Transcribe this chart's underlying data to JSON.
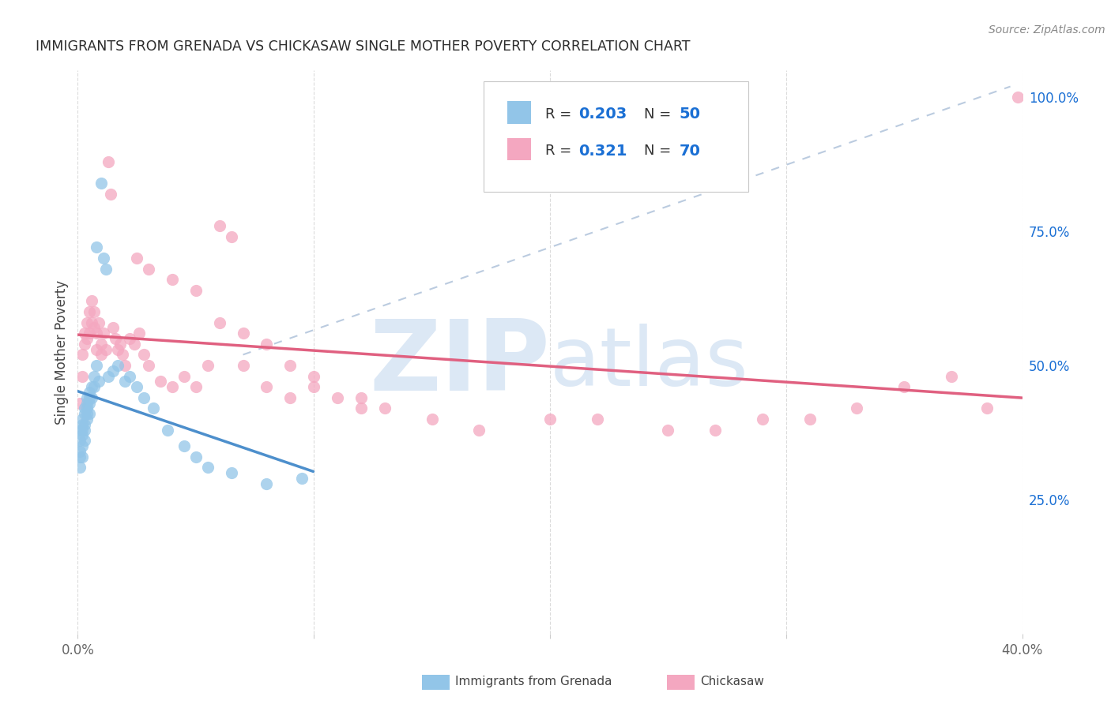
{
  "title": "IMMIGRANTS FROM GRENADA VS CHICKASAW SINGLE MOTHER POVERTY CORRELATION CHART",
  "source": "Source: ZipAtlas.com",
  "ylabel": "Single Mother Poverty",
  "xlim": [
    0.0,
    0.4
  ],
  "ylim": [
    0.0,
    1.05
  ],
  "blue_color": "#92c5e8",
  "pink_color": "#f4a7c0",
  "title_color": "#2d2d2d",
  "r_val_color": "#1a6fd4",
  "watermark_color": "#dce8f5",
  "trendline_blue_color": "#4d8fcc",
  "trendline_pink_color": "#e06080",
  "dashed_line_color": "#aabfd8",
  "background_color": "#ffffff",
  "grid_color": "#d8d8d8",
  "blue_x": [
    0.001,
    0.001,
    0.001,
    0.001,
    0.001,
    0.002,
    0.002,
    0.002,
    0.002,
    0.002,
    0.002,
    0.003,
    0.003,
    0.003,
    0.003,
    0.003,
    0.004,
    0.004,
    0.004,
    0.004,
    0.004,
    0.005,
    0.005,
    0.005,
    0.005,
    0.006,
    0.006,
    0.007,
    0.007,
    0.008,
    0.008,
    0.009,
    0.01,
    0.011,
    0.012,
    0.013,
    0.015,
    0.017,
    0.02,
    0.022,
    0.025,
    0.028,
    0.032,
    0.038,
    0.045,
    0.05,
    0.055,
    0.065,
    0.08,
    0.095
  ],
  "blue_y": [
    0.38,
    0.36,
    0.34,
    0.33,
    0.31,
    0.4,
    0.39,
    0.38,
    0.37,
    0.35,
    0.33,
    0.42,
    0.41,
    0.39,
    0.38,
    0.36,
    0.44,
    0.43,
    0.42,
    0.41,
    0.4,
    0.45,
    0.44,
    0.43,
    0.41,
    0.46,
    0.44,
    0.48,
    0.46,
    0.72,
    0.5,
    0.47,
    0.84,
    0.7,
    0.68,
    0.48,
    0.49,
    0.5,
    0.47,
    0.48,
    0.46,
    0.44,
    0.42,
    0.38,
    0.35,
    0.33,
    0.31,
    0.3,
    0.28,
    0.29
  ],
  "pink_x": [
    0.001,
    0.002,
    0.002,
    0.003,
    0.003,
    0.004,
    0.004,
    0.005,
    0.005,
    0.006,
    0.006,
    0.007,
    0.007,
    0.008,
    0.008,
    0.009,
    0.01,
    0.01,
    0.011,
    0.012,
    0.013,
    0.014,
    0.015,
    0.016,
    0.017,
    0.018,
    0.019,
    0.02,
    0.022,
    0.024,
    0.026,
    0.028,
    0.03,
    0.035,
    0.04,
    0.045,
    0.05,
    0.055,
    0.06,
    0.065,
    0.07,
    0.08,
    0.09,
    0.1,
    0.11,
    0.12,
    0.13,
    0.15,
    0.17,
    0.2,
    0.22,
    0.25,
    0.27,
    0.29,
    0.31,
    0.33,
    0.35,
    0.37,
    0.385,
    0.398,
    0.025,
    0.03,
    0.04,
    0.05,
    0.06,
    0.07,
    0.08,
    0.09,
    0.1,
    0.12
  ],
  "pink_y": [
    0.43,
    0.52,
    0.48,
    0.56,
    0.54,
    0.58,
    0.55,
    0.6,
    0.56,
    0.62,
    0.58,
    0.6,
    0.57,
    0.56,
    0.53,
    0.58,
    0.54,
    0.52,
    0.56,
    0.53,
    0.88,
    0.82,
    0.57,
    0.55,
    0.53,
    0.54,
    0.52,
    0.5,
    0.55,
    0.54,
    0.56,
    0.52,
    0.5,
    0.47,
    0.46,
    0.48,
    0.46,
    0.5,
    0.76,
    0.74,
    0.5,
    0.46,
    0.44,
    0.46,
    0.44,
    0.42,
    0.42,
    0.4,
    0.38,
    0.4,
    0.4,
    0.38,
    0.38,
    0.4,
    0.4,
    0.42,
    0.46,
    0.48,
    0.42,
    1.0,
    0.7,
    0.68,
    0.66,
    0.64,
    0.58,
    0.56,
    0.54,
    0.5,
    0.48,
    0.44
  ]
}
